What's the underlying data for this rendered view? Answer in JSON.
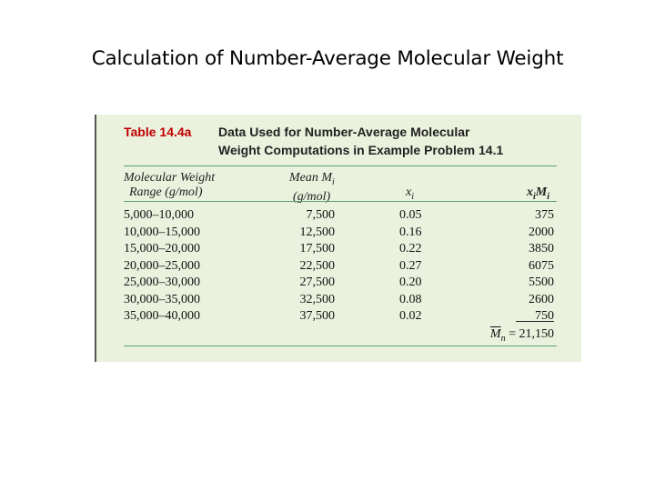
{
  "slide": {
    "title": "Calculation of Number-Average Molecular Weight"
  },
  "table": {
    "label": "Table 14.4a",
    "caption_line1": "Data Used for Number-Average Molecular",
    "caption_line2": "Weight Computations in Example Problem 14.1",
    "headers": {
      "range_line1": "Molecular Weight",
      "range_line2": "Range (g/mol)",
      "mean_line1": "Mean M",
      "mean_sub": "i",
      "mean_line2": "(g/mol)",
      "xi": "x",
      "xi_sub": "i",
      "ximi_x": "x",
      "ximi_i": "i",
      "ximi_m": "M",
      "ximi_i2": "i"
    },
    "rows": [
      {
        "range": "5,000–10,000",
        "mean": "7,500",
        "xi": "0.05",
        "ximi": "375"
      },
      {
        "range": "10,000–15,000",
        "mean": "12,500",
        "xi": "0.16",
        "ximi": "2000"
      },
      {
        "range": "15,000–20,000",
        "mean": "17,500",
        "xi": "0.22",
        "ximi": "3850"
      },
      {
        "range": "20,000–25,000",
        "mean": "22,500",
        "xi": "0.27",
        "ximi": "6075"
      },
      {
        "range": "25,000–30,000",
        "mean": "27,500",
        "xi": "0.20",
        "ximi": "5500"
      },
      {
        "range": "30,000–35,000",
        "mean": "32,500",
        "xi": "0.08",
        "ximi": "2600"
      },
      {
        "range": "35,000–40,000",
        "mean": "37,500",
        "xi": "0.02",
        "ximi": "750"
      }
    ],
    "total": {
      "symbol": "M",
      "sub": "n",
      "equals": " = ",
      "value": "21,150"
    }
  }
}
